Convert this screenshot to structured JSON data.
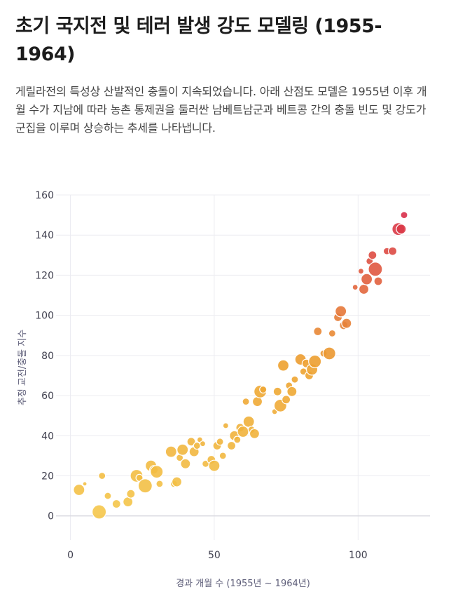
{
  "header": {
    "title": "초기 국지전 및 테러 발생 강도 모델링 (1955-1964)",
    "description": "게릴라전의 특성상 산발적인 충돌이 지속되었습니다. 아래 산점도 모델은 1955년 이후 개월 수가 지남에 따라 농촌 통제권을 둘러싼 남베트남군과 베트콩 간의 충돌 빈도 및 강도가 군집을 이루며 상승하는 추세를 나타냅니다."
  },
  "chart_data": {
    "type": "scatter",
    "title": "",
    "xlabel": "경과 개월 수 (1955년 ~ 1964년)",
    "ylabel": "추정 교전/충돌 지수",
    "xlim": [
      -5,
      125
    ],
    "ylim": [
      -12,
      160
    ],
    "xticks": [
      0,
      50,
      100
    ],
    "yticks": [
      0,
      20,
      40,
      60,
      80,
      100,
      120,
      140,
      160
    ],
    "grid": true,
    "color_scale": {
      "low": "#f5c84c",
      "mid": "#eda12f",
      "high": "#d82f4a"
    },
    "points": [
      {
        "x": 3,
        "y": 13,
        "size": 16
      },
      {
        "x": 5,
        "y": 16,
        "size": 6
      },
      {
        "x": 10,
        "y": 2,
        "size": 20
      },
      {
        "x": 11,
        "y": 20,
        "size": 10
      },
      {
        "x": 13,
        "y": 10,
        "size": 10
      },
      {
        "x": 16,
        "y": 6,
        "size": 12
      },
      {
        "x": 20,
        "y": 7,
        "size": 14
      },
      {
        "x": 21,
        "y": 11,
        "size": 12
      },
      {
        "x": 23,
        "y": 20,
        "size": 18
      },
      {
        "x": 24,
        "y": 19,
        "size": 10
      },
      {
        "x": 26,
        "y": 15,
        "size": 20
      },
      {
        "x": 28,
        "y": 25,
        "size": 16
      },
      {
        "x": 29,
        "y": 23,
        "size": 12
      },
      {
        "x": 30,
        "y": 22,
        "size": 18
      },
      {
        "x": 31,
        "y": 16,
        "size": 10
      },
      {
        "x": 35,
        "y": 32,
        "size": 16
      },
      {
        "x": 36,
        "y": 16,
        "size": 10
      },
      {
        "x": 37,
        "y": 17,
        "size": 14
      },
      {
        "x": 38,
        "y": 29,
        "size": 10
      },
      {
        "x": 39,
        "y": 33,
        "size": 16
      },
      {
        "x": 40,
        "y": 26,
        "size": 14
      },
      {
        "x": 42,
        "y": 37,
        "size": 12
      },
      {
        "x": 43,
        "y": 32,
        "size": 14
      },
      {
        "x": 44,
        "y": 35,
        "size": 10
      },
      {
        "x": 45,
        "y": 38,
        "size": 8
      },
      {
        "x": 46,
        "y": 36,
        "size": 8
      },
      {
        "x": 47,
        "y": 26,
        "size": 10
      },
      {
        "x": 49,
        "y": 28,
        "size": 12
      },
      {
        "x": 50,
        "y": 25,
        "size": 16
      },
      {
        "x": 51,
        "y": 35,
        "size": 12
      },
      {
        "x": 52,
        "y": 37,
        "size": 10
      },
      {
        "x": 53,
        "y": 30,
        "size": 10
      },
      {
        "x": 54,
        "y": 45,
        "size": 8
      },
      {
        "x": 56,
        "y": 35,
        "size": 12
      },
      {
        "x": 57,
        "y": 40,
        "size": 14
      },
      {
        "x": 58,
        "y": 38,
        "size": 10
      },
      {
        "x": 59,
        "y": 44,
        "size": 12
      },
      {
        "x": 60,
        "y": 42,
        "size": 16
      },
      {
        "x": 61,
        "y": 57,
        "size": 10
      },
      {
        "x": 62,
        "y": 47,
        "size": 16
      },
      {
        "x": 63,
        "y": 43,
        "size": 10
      },
      {
        "x": 64,
        "y": 41,
        "size": 14
      },
      {
        "x": 65,
        "y": 57,
        "size": 14
      },
      {
        "x": 66,
        "y": 62,
        "size": 18
      },
      {
        "x": 67,
        "y": 63,
        "size": 10
      },
      {
        "x": 71,
        "y": 52,
        "size": 8
      },
      {
        "x": 72,
        "y": 62,
        "size": 12
      },
      {
        "x": 73,
        "y": 55,
        "size": 18
      },
      {
        "x": 74,
        "y": 75,
        "size": 16
      },
      {
        "x": 75,
        "y": 58,
        "size": 12
      },
      {
        "x": 76,
        "y": 65,
        "size": 10
      },
      {
        "x": 77,
        "y": 62,
        "size": 14
      },
      {
        "x": 78,
        "y": 68,
        "size": 10
      },
      {
        "x": 80,
        "y": 78,
        "size": 16
      },
      {
        "x": 81,
        "y": 72,
        "size": 10
      },
      {
        "x": 82,
        "y": 76,
        "size": 12
      },
      {
        "x": 83,
        "y": 70,
        "size": 12
      },
      {
        "x": 84,
        "y": 73,
        "size": 16
      },
      {
        "x": 85,
        "y": 77,
        "size": 18
      },
      {
        "x": 86,
        "y": 92,
        "size": 12
      },
      {
        "x": 88,
        "y": 81,
        "size": 10
      },
      {
        "x": 90,
        "y": 81,
        "size": 18
      },
      {
        "x": 91,
        "y": 91,
        "size": 10
      },
      {
        "x": 93,
        "y": 99,
        "size": 12
      },
      {
        "x": 94,
        "y": 102,
        "size": 16
      },
      {
        "x": 95,
        "y": 95,
        "size": 12
      },
      {
        "x": 96,
        "y": 96,
        "size": 14
      },
      {
        "x": 99,
        "y": 114,
        "size": 8
      },
      {
        "x": 101,
        "y": 122,
        "size": 8
      },
      {
        "x": 102,
        "y": 113,
        "size": 14
      },
      {
        "x": 103,
        "y": 118,
        "size": 16
      },
      {
        "x": 104,
        "y": 127,
        "size": 10
      },
      {
        "x": 105,
        "y": 130,
        "size": 12
      },
      {
        "x": 106,
        "y": 123,
        "size": 20
      },
      {
        "x": 107,
        "y": 117,
        "size": 12
      },
      {
        "x": 110,
        "y": 132,
        "size": 10
      },
      {
        "x": 112,
        "y": 132,
        "size": 12
      },
      {
        "x": 114,
        "y": 143,
        "size": 18
      },
      {
        "x": 115,
        "y": 143,
        "size": 14
      },
      {
        "x": 116,
        "y": 150,
        "size": 10
      }
    ]
  }
}
